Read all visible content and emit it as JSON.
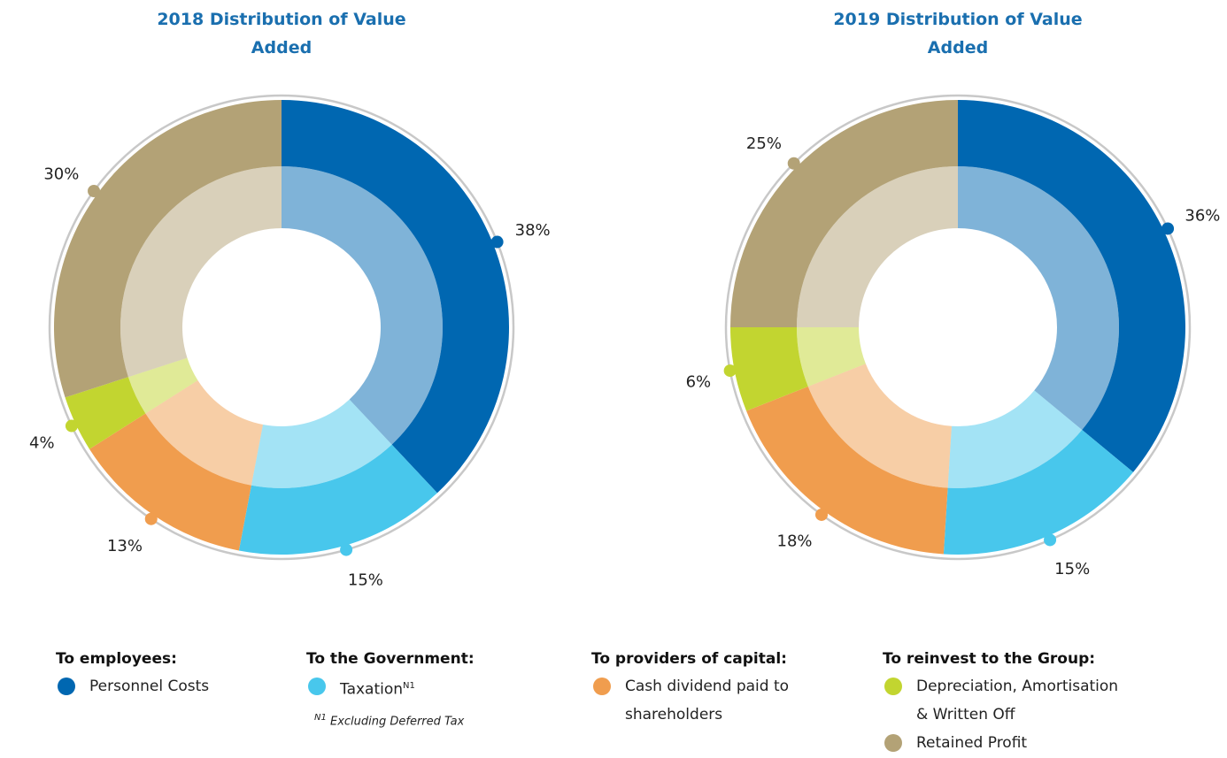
{
  "chart_data": [
    {
      "type": "donut",
      "title": "2018 Distribution of Value Added",
      "values": [
        38,
        15,
        13,
        4,
        30
      ],
      "value_labels": [
        "38%",
        "15%",
        "13%",
        "4%",
        "30%"
      ]
    },
    {
      "type": "donut",
      "title": "2019 Distribution of Value Added",
      "values": [
        36,
        15,
        18,
        6,
        25
      ],
      "value_labels": [
        "36%",
        "15%",
        "18%",
        "6%",
        "25%"
      ]
    }
  ],
  "legend": {
    "groups": [
      {
        "heading": "To employees:",
        "items": [
          {
            "name": "Personnel Costs",
            "color": "#0067b1"
          }
        ]
      },
      {
        "heading": "To the Government:",
        "items": [
          {
            "name": "Taxation",
            "note": "N1",
            "color": "#48c7ec"
          }
        ]
      },
      {
        "heading": "To providers of capital:",
        "items": [
          {
            "name": "Cash dividend paid to shareholders",
            "color": "#f09d4e"
          }
        ]
      },
      {
        "heading": "To reinvest to the Group:",
        "items": [
          {
            "name": "Depreciation, Amortisation & Written Off",
            "color": "#c2d530"
          },
          {
            "name": "Retained Profit",
            "color": "#b3a276"
          }
        ]
      }
    ]
  },
  "footnote": {
    "marker": "N1",
    "text": "Excluding Deferred Tax"
  }
}
